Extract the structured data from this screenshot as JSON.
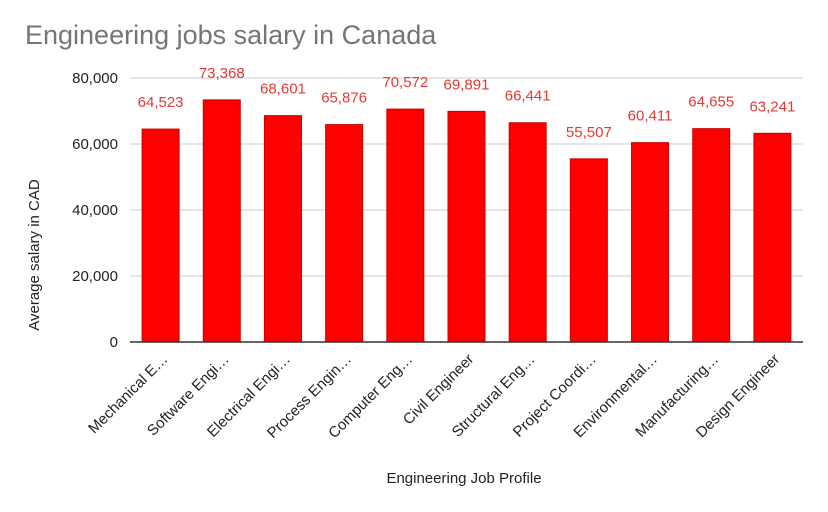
{
  "chart_data": {
    "type": "bar",
    "title": "Engineering jobs salary in Canada",
    "xlabel": "Engineering Job Profile",
    "ylabel": "Average salary in CAD",
    "categories": [
      "Mechanical E…",
      "Software Engi…",
      "Electrical Engi…",
      "Process Engin…",
      "Computer Eng…",
      "Civil Engineer",
      "Structural Eng…",
      "Project Coordi…",
      "Environmental…",
      "Manufacturing…",
      "Design Engineer"
    ],
    "values": [
      64523,
      73368,
      68601,
      65876,
      70572,
      69891,
      66441,
      55507,
      60411,
      64655,
      63241
    ],
    "data_labels": [
      "64,523",
      "73,368",
      "68,601",
      "65,876",
      "70,572",
      "69,891",
      "66,441",
      "55,507",
      "60,411",
      "64,655",
      "63,241"
    ],
    "ylim": [
      0,
      80000
    ],
    "yticks": [
      0,
      20000,
      40000,
      60000,
      80000
    ],
    "ytick_labels": [
      "0",
      "20,000",
      "40,000",
      "60,000",
      "80,000"
    ],
    "grid": true,
    "legend": "none",
    "colors": {
      "bar": "#ff0000",
      "bar_edge": "#cc0000",
      "data_label": "#e53935",
      "grid": "#cccccc",
      "title": "#757575"
    }
  }
}
